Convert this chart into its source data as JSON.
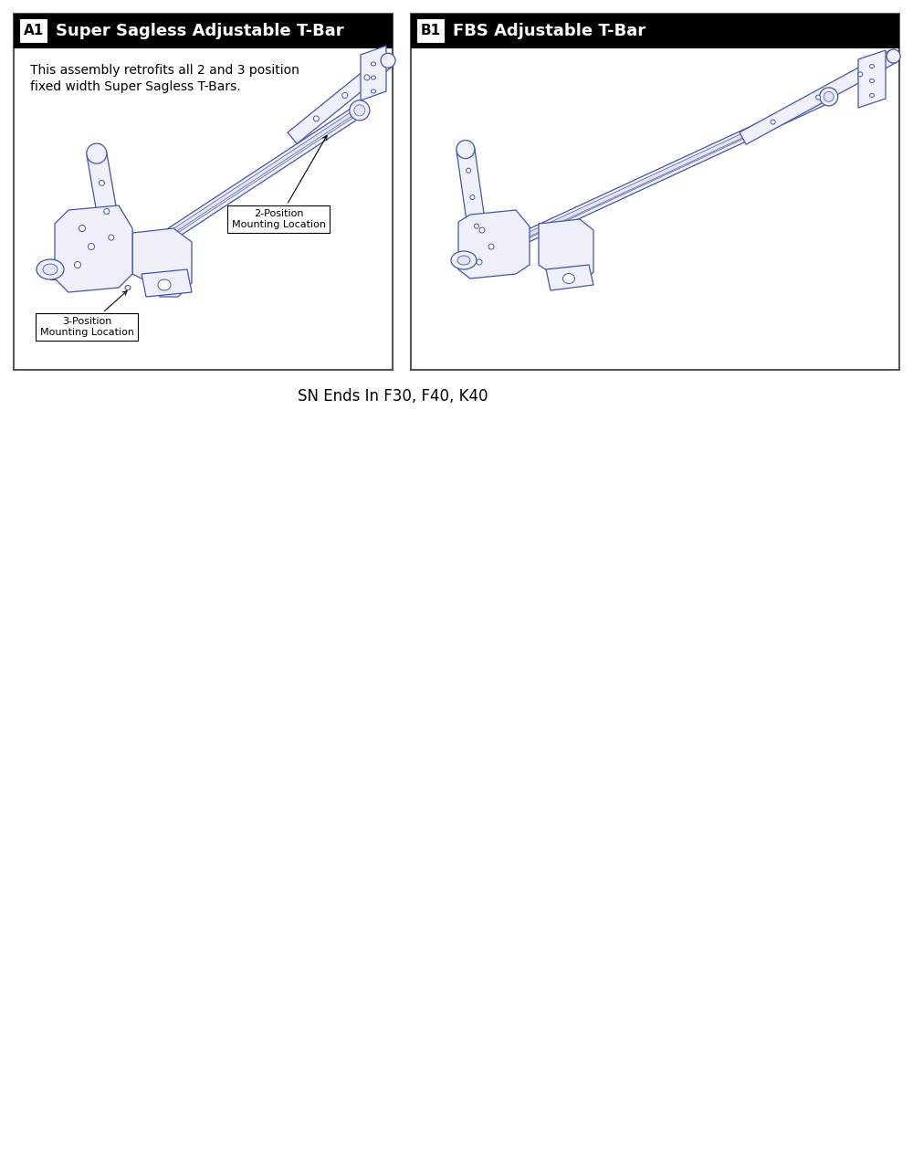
{
  "title": "SN Ends In F30, F40, K40",
  "panel_a1_label": "A1",
  "panel_a1_title": "Super Sagless Adjustable T-Bar",
  "panel_a1_description": "This assembly retrofits all 2 and 3 position\nfixed width Super Sagless T-Bars.",
  "panel_a1_annotation1": "2-Position\nMounting Location",
  "panel_a1_annotation2": "3-Position\nMounting Location",
  "panel_b1_label": "B1",
  "panel_b1_title": "FBS Adjustable T-Bar",
  "bg_color": "#ffffff",
  "panel_border_color": "#555555",
  "header_bg": "#000000",
  "header_text_color": "#ffffff",
  "label_bg": "#ffffff",
  "label_border": "#000000",
  "dc": "#4455aa",
  "df": "#f0f0fa",
  "df2": "#e4e4f4",
  "annotation_color": "#000000",
  "title_fontsize": 13,
  "label_fontsize": 11,
  "desc_fontsize": 10,
  "annot_fontsize": 8,
  "footer_fontsize": 12,
  "fig_width": 10.0,
  "fig_height": 12.67
}
